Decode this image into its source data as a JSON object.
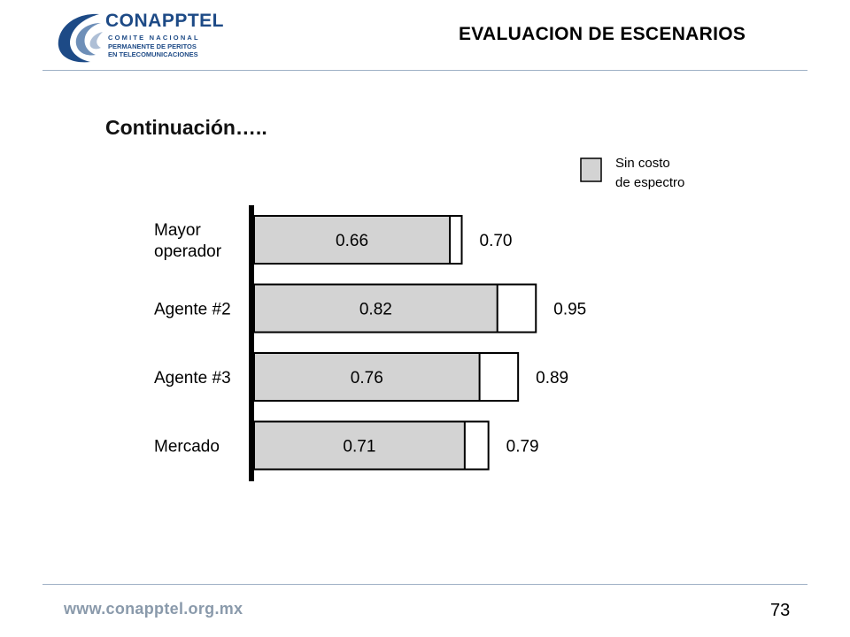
{
  "logo": {
    "name": "CONAPPTEL",
    "line1": "COMITE NACIONAL",
    "line2": "PERMANENTE DE PERITOS",
    "line3": "EN TELECOMUNICACIONES"
  },
  "header": {
    "title": "EVALUACION DE ESCENARIOS"
  },
  "subtitle": "Continuación…..",
  "footer": {
    "url": "www.conapptel.org.mx",
    "page": "73"
  },
  "colors": {
    "bar_fill": "#d3d3d3",
    "bar_extension": "#ffffff",
    "axis": "#000000",
    "logo_blue": "#1d4a86",
    "rule": "#9fb1c6"
  },
  "chart_data": {
    "type": "bar",
    "orientation": "horizontal",
    "legend": {
      "label_lines": [
        "Sin costo",
        "de espectro"
      ],
      "placement": "top-right"
    },
    "categories": [
      {
        "label_lines": [
          "Mayor",
          "operador"
        ],
        "inner_label": "0.66",
        "outer_label": "0.70"
      },
      {
        "label_lines": [
          "Agente #2"
        ],
        "inner_label": "0.82",
        "outer_label": "0.95"
      },
      {
        "label_lines": [
          "Agente #3"
        ],
        "inner_label": "0.76",
        "outer_label": "0.89"
      },
      {
        "label_lines": [
          "Mercado"
        ],
        "inner_label": "0.71",
        "outer_label": "0.79"
      }
    ],
    "series": [
      {
        "name": "Sin costo de espectro",
        "values": [
          0.66,
          0.82,
          0.76,
          0.71
        ]
      },
      {
        "values": [
          0.7,
          0.95,
          0.89,
          0.79
        ]
      }
    ]
  }
}
